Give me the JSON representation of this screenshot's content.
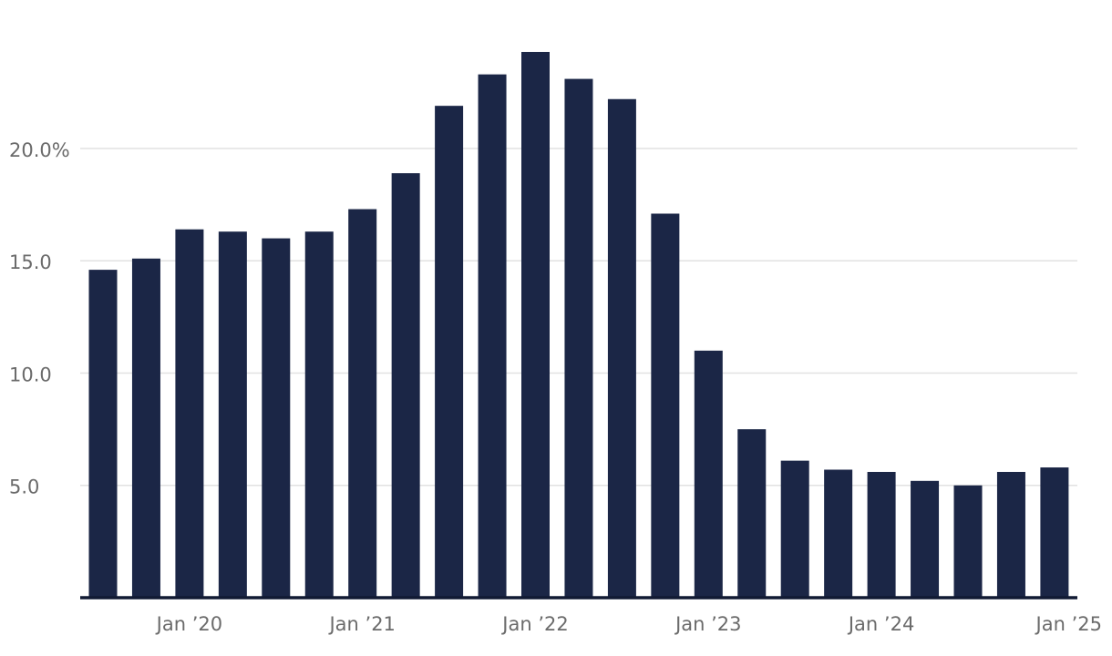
{
  "chart_data": {
    "type": "bar",
    "title": "",
    "xlabel": "",
    "ylabel": "",
    "unit_suffix": "%",
    "ylim": [
      0,
      24.3
    ],
    "grid": true,
    "bar_color": "#1b2646",
    "y_ticks": [
      {
        "value": 5,
        "label": "5.0"
      },
      {
        "value": 10,
        "label": "10.0"
      },
      {
        "value": 15,
        "label": "15.0"
      },
      {
        "value": 20,
        "label": "20.0%"
      }
    ],
    "x_ticks": [
      {
        "index": 2,
        "label": "Jan ’20"
      },
      {
        "index": 6,
        "label": "Jan ’21"
      },
      {
        "index": 10,
        "label": "Jan ’22"
      },
      {
        "index": 14,
        "label": "Jan ’23"
      },
      {
        "index": 18,
        "label": "Jan ’24"
      },
      {
        "index": 22,
        "label": "Jan ’25"
      }
    ],
    "categories": [
      "",
      "",
      "",
      "",
      "",
      "",
      "",
      "",
      "",
      "",
      "",
      "",
      "",
      "",
      "",
      "",
      "",
      "",
      "",
      "",
      "",
      "",
      ""
    ],
    "values": [
      14.6,
      15.1,
      16.4,
      16.3,
      16.0,
      16.3,
      17.3,
      18.9,
      21.9,
      23.3,
      24.3,
      23.1,
      22.2,
      17.1,
      11.0,
      7.5,
      6.1,
      5.7,
      5.6,
      5.2,
      5.0,
      5.6,
      5.8
    ]
  }
}
